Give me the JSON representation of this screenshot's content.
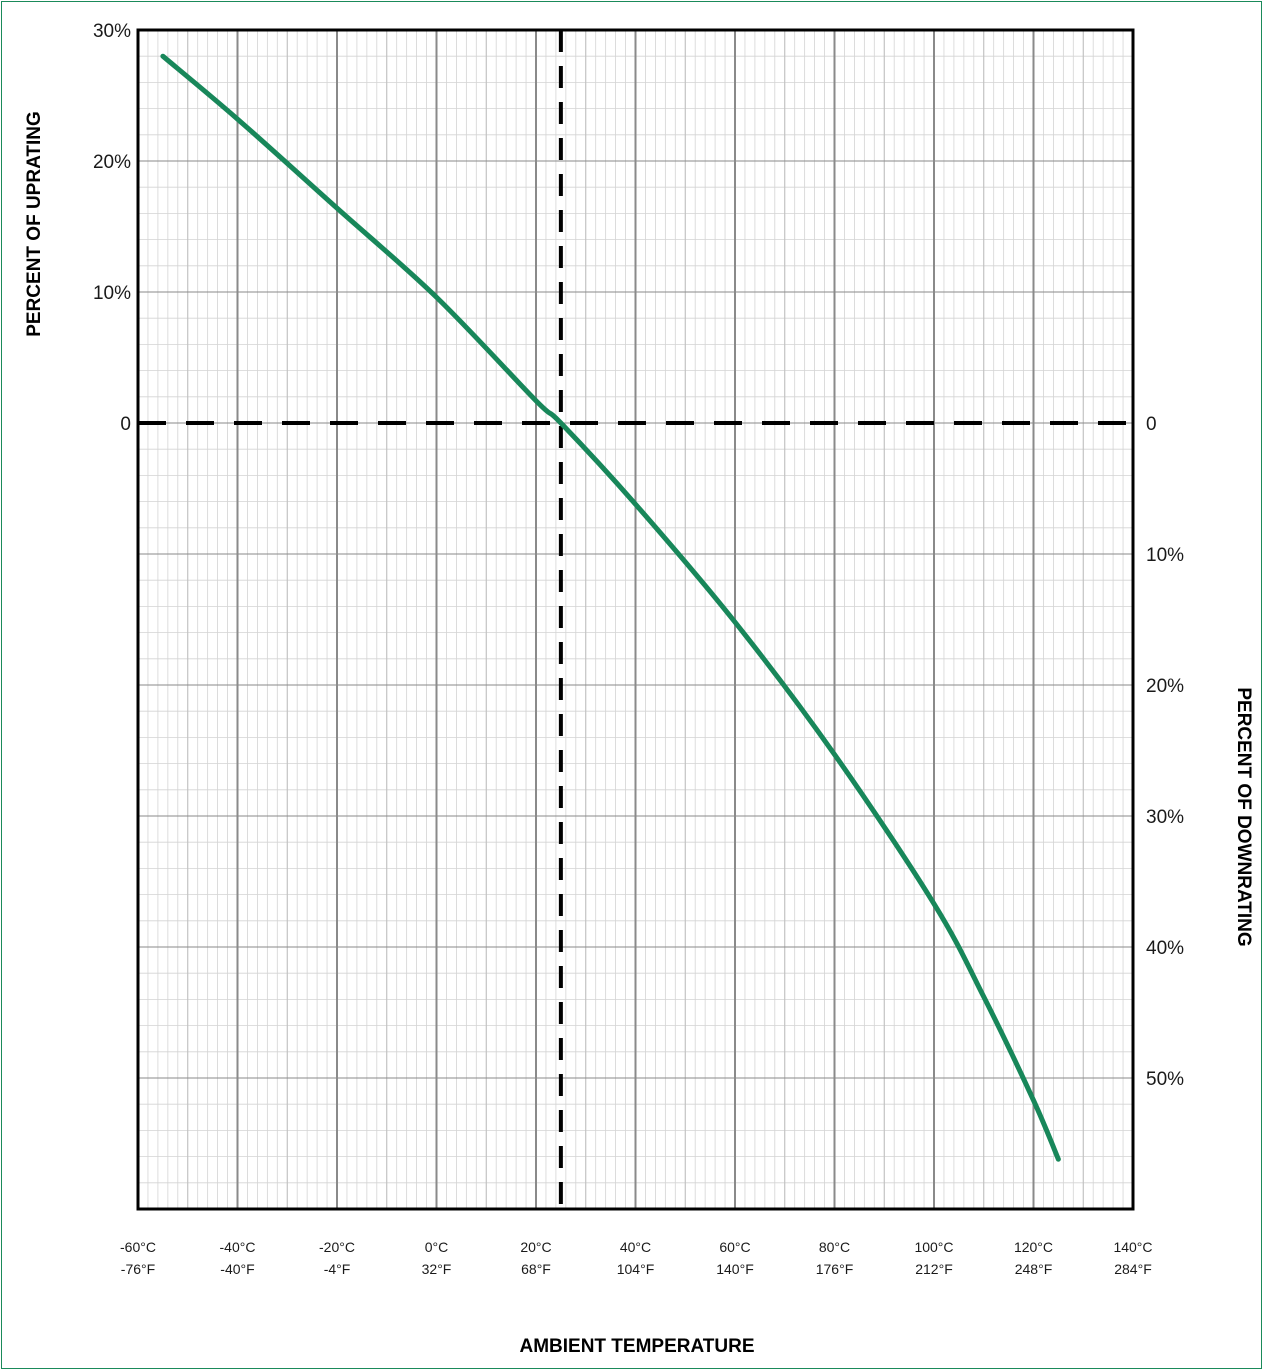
{
  "chart_data": {
    "type": "line",
    "x_axis": {
      "label": "AMBIENT TEMPERATURE",
      "unit": "°C",
      "range": [
        -60,
        140
      ],
      "ticks": [
        -60,
        -40,
        -20,
        0,
        20,
        40,
        60,
        80,
        100,
        120,
        140
      ],
      "tick_labels_c": [
        "-60°C",
        "-40°C",
        "-20°C",
        "0°C",
        "20°C",
        "40°C",
        "60°C",
        "80°C",
        "100°C",
        "120°C",
        "140°C"
      ],
      "tick_labels_f": [
        "-76°F",
        "-40°F",
        "-4°F",
        "32°F",
        "68°F",
        "104°F",
        "140°F",
        "176°F",
        "212°F",
        "248°F",
        "284°F"
      ]
    },
    "y_axis_left": {
      "label": "PERCENT OF UPRATING",
      "ticks": [
        30,
        20,
        10,
        0
      ],
      "tick_labels": [
        "30%",
        "20%",
        "10%",
        "0"
      ]
    },
    "y_axis_right": {
      "label": "PERCENT OF DOWNRATING",
      "ticks": [
        0,
        10,
        20,
        30,
        40,
        50
      ],
      "tick_labels": [
        "0",
        "10%",
        "20%",
        "30%",
        "40%",
        "50%"
      ]
    },
    "y_range": [
      -60,
      30
    ],
    "reference_lines": {
      "x": 25,
      "y": 0
    },
    "grid": true,
    "colors": {
      "curve": "#18875a",
      "border": "#000000",
      "major_grid": "#8a8a8a",
      "minor_grid": "#d4d4d4"
    },
    "series": [
      {
        "x": [
          -55,
          -40,
          -20,
          0,
          20,
          25,
          40,
          60,
          80,
          100,
          110,
          120,
          125
        ],
        "y": [
          28,
          23.2,
          16.4,
          9.6,
          1.7,
          0,
          -6.2,
          -15.2,
          -25.3,
          -36.7,
          -43.8,
          -51.7,
          -56.2
        ]
      }
    ]
  }
}
